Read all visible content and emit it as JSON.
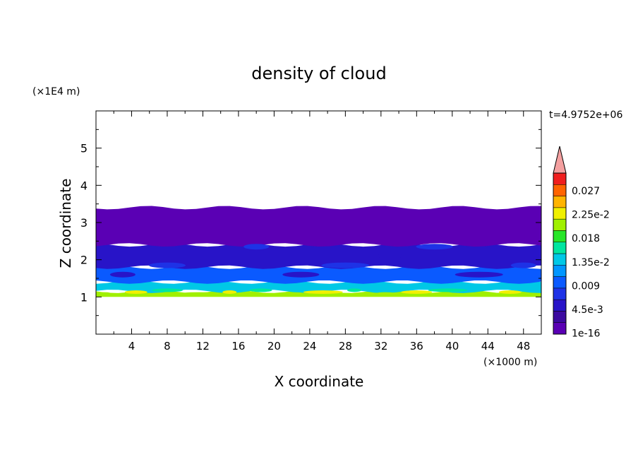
{
  "chart_data": {
    "type": "heatmap",
    "title": "density of cloud",
    "xlabel": "X coordinate",
    "ylabel": "Z coordinate",
    "x_unit": "(×1000 m)",
    "y_unit": "(×1E4 m)",
    "time_label": "t=4.9752e+06",
    "xlim": [
      0,
      50
    ],
    "ylim": [
      0,
      6
    ],
    "x_ticks": [
      "4",
      "8",
      "12",
      "16",
      "20",
      "24",
      "28",
      "32",
      "36",
      "40",
      "44",
      "48"
    ],
    "y_ticks": [
      "1",
      "2",
      "3",
      "4",
      "5"
    ],
    "colorbar": {
      "labels": [
        "0.027",
        "2.25e-2",
        "0.018",
        "1.35e-2",
        "0.009",
        "4.5e-3",
        "1e-16"
      ],
      "levels": [
        1e-16,
        0.00225,
        0.0045,
        0.00675,
        0.009,
        0.01125,
        0.0135,
        0.01575,
        0.018,
        0.02025,
        0.0225,
        0.02475,
        0.027,
        0.02925
      ],
      "colors": [
        "#5a00b4",
        "#3c0aa0",
        "#2814c8",
        "#1e32e6",
        "#0a5aff",
        "#0096ff",
        "#00c8e6",
        "#00e6a0",
        "#28e628",
        "#a0f000",
        "#f0f000",
        "#ffb400",
        "#ff6400",
        "#f01e1e"
      ],
      "extend_color": "#f4a0a0"
    },
    "cloud_bands": [
      {
        "z_range": [
          1.0,
          1.15
        ],
        "density": 0.0225,
        "color": "#a0f000"
      },
      {
        "z_range": [
          1.15,
          1.4
        ],
        "density": 0.012,
        "color": "#00c8e6"
      },
      {
        "z_range": [
          1.4,
          1.8
        ],
        "density": 0.008,
        "color": "#0a5aff"
      },
      {
        "z_range": [
          1.8,
          2.4
        ],
        "density": 0.005,
        "color": "#2814c8"
      },
      {
        "z_range": [
          2.4,
          3.4
        ],
        "density": 0.001,
        "color": "#5a00b4"
      }
    ],
    "cloud_base_z": 1.0,
    "cloud_top_z": 3.35
  }
}
